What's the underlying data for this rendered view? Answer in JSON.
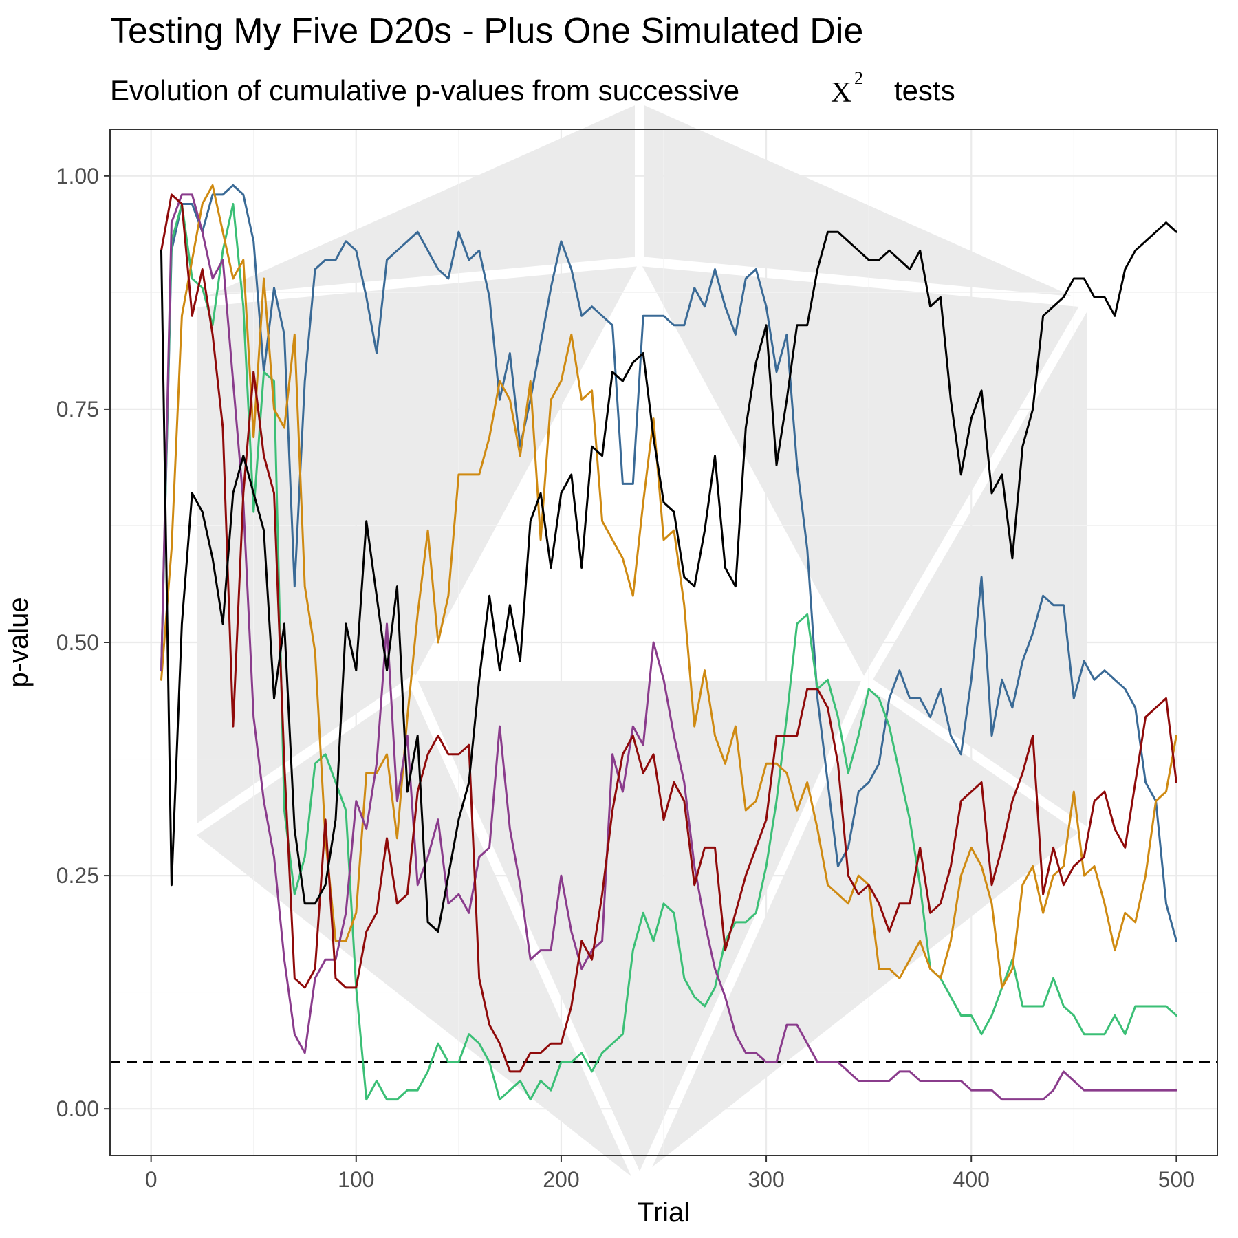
{
  "chart_data": {
    "type": "line",
    "title": "Testing My Five D20s - Plus One Simulated Die",
    "subtitle_before": "Evolution of cumulative p-values from successive",
    "subtitle_symbol": "X",
    "subtitle_superscript": "2",
    "subtitle_after": "tests",
    "xlabel": "Trial",
    "ylabel": "p-value",
    "xlim": [
      -20,
      520
    ],
    "ylim": [
      -0.05,
      1.05
    ],
    "x_ticks": [
      0,
      100,
      200,
      300,
      400,
      500
    ],
    "x_tick_labels": [
      "0",
      "100",
      "200",
      "300",
      "400",
      "500"
    ],
    "y_ticks": [
      0,
      0.25,
      0.5,
      0.75,
      1.0
    ],
    "y_tick_labels": [
      "0.00",
      "0.25",
      "0.50",
      "0.75",
      "1.00"
    ],
    "grid": true,
    "legend": "none",
    "reference_line": {
      "y": 0.05,
      "style": "dashed",
      "color": "#000000"
    },
    "x": [
      5,
      10,
      15,
      20,
      25,
      30,
      35,
      40,
      45,
      50,
      55,
      60,
      65,
      70,
      75,
      80,
      85,
      90,
      95,
      100,
      105,
      110,
      115,
      120,
      125,
      130,
      135,
      140,
      145,
      150,
      155,
      160,
      165,
      170,
      175,
      180,
      185,
      190,
      195,
      200,
      205,
      210,
      215,
      220,
      225,
      230,
      235,
      240,
      245,
      250,
      255,
      260,
      265,
      270,
      275,
      280,
      285,
      290,
      295,
      300,
      305,
      310,
      315,
      320,
      325,
      330,
      335,
      340,
      345,
      350,
      355,
      360,
      365,
      370,
      375,
      380,
      385,
      390,
      395,
      400,
      405,
      410,
      415,
      420,
      425,
      430,
      435,
      440,
      445,
      450,
      455,
      460,
      465,
      470,
      475,
      480,
      485,
      490,
      495,
      500
    ],
    "series": [
      {
        "color": "#3a6a96",
        "values": [
          0.47,
          0.92,
          0.97,
          0.97,
          0.94,
          0.98,
          0.98,
          0.99,
          0.98,
          0.93,
          0.79,
          0.88,
          0.83,
          0.56,
          0.78,
          0.9,
          0.91,
          0.91,
          0.93,
          0.92,
          0.87,
          0.81,
          0.91,
          0.92,
          0.93,
          0.94,
          0.92,
          0.9,
          0.89,
          0.94,
          0.91,
          0.92,
          0.87,
          0.76,
          0.81,
          0.71,
          0.76,
          0.82,
          0.88,
          0.93,
          0.9,
          0.85,
          0.86,
          0.85,
          0.84,
          0.67,
          0.67,
          0.85,
          0.85,
          0.85,
          0.84,
          0.84,
          0.88,
          0.86,
          0.9,
          0.86,
          0.83,
          0.89,
          0.9,
          0.86,
          0.79,
          0.83,
          0.69,
          0.6,
          0.44,
          0.35,
          0.26,
          0.28,
          0.34,
          0.35,
          0.37,
          0.44,
          0.47,
          0.44,
          0.44,
          0.42,
          0.45,
          0.4,
          0.38,
          0.46,
          0.57,
          0.4,
          0.46,
          0.43,
          0.48,
          0.51,
          0.55,
          0.54,
          0.54,
          0.44,
          0.48,
          0.46,
          0.47,
          0.46,
          0.45,
          0.43,
          0.35,
          0.33,
          0.22,
          0.18
        ]
      },
      {
        "color": "#3bbf76",
        "values": [
          0.47,
          0.93,
          0.97,
          0.89,
          0.88,
          0.84,
          0.92,
          0.97,
          0.86,
          0.64,
          0.79,
          0.78,
          0.32,
          0.23,
          0.27,
          0.37,
          0.38,
          0.35,
          0.32,
          0.13,
          0.01,
          0.03,
          0.01,
          0.01,
          0.02,
          0.02,
          0.04,
          0.07,
          0.05,
          0.05,
          0.08,
          0.07,
          0.05,
          0.01,
          0.02,
          0.03,
          0.01,
          0.03,
          0.02,
          0.05,
          0.05,
          0.06,
          0.04,
          0.06,
          0.07,
          0.08,
          0.17,
          0.21,
          0.18,
          0.22,
          0.21,
          0.14,
          0.12,
          0.11,
          0.13,
          0.18,
          0.2,
          0.2,
          0.21,
          0.26,
          0.33,
          0.42,
          0.52,
          0.53,
          0.45,
          0.46,
          0.42,
          0.36,
          0.4,
          0.45,
          0.44,
          0.41,
          0.36,
          0.31,
          0.24,
          0.15,
          0.14,
          0.12,
          0.1,
          0.1,
          0.08,
          0.1,
          0.13,
          0.16,
          0.11,
          0.11,
          0.11,
          0.14,
          0.11,
          0.1,
          0.08,
          0.08,
          0.08,
          0.1,
          0.08,
          0.11,
          0.11,
          0.11,
          0.11,
          0.1
        ]
      },
      {
        "color": "#cf8a12",
        "values": [
          0.46,
          0.6,
          0.85,
          0.91,
          0.97,
          0.99,
          0.94,
          0.89,
          0.91,
          0.72,
          0.89,
          0.75,
          0.73,
          0.83,
          0.56,
          0.49,
          0.29,
          0.18,
          0.18,
          0.21,
          0.36,
          0.36,
          0.38,
          0.29,
          0.42,
          0.53,
          0.62,
          0.5,
          0.55,
          0.68,
          0.68,
          0.68,
          0.72,
          0.78,
          0.76,
          0.7,
          0.78,
          0.61,
          0.76,
          0.78,
          0.83,
          0.76,
          0.77,
          0.63,
          0.61,
          0.59,
          0.55,
          0.65,
          0.74,
          0.61,
          0.62,
          0.54,
          0.41,
          0.47,
          0.4,
          0.37,
          0.41,
          0.32,
          0.33,
          0.37,
          0.37,
          0.36,
          0.32,
          0.35,
          0.3,
          0.24,
          0.23,
          0.22,
          0.25,
          0.24,
          0.15,
          0.15,
          0.14,
          0.16,
          0.18,
          0.15,
          0.14,
          0.18,
          0.25,
          0.28,
          0.26,
          0.22,
          0.13,
          0.15,
          0.24,
          0.26,
          0.21,
          0.25,
          0.26,
          0.34,
          0.25,
          0.26,
          0.22,
          0.17,
          0.21,
          0.2,
          0.25,
          0.33,
          0.34,
          0.4
        ]
      },
      {
        "color": "#8a3c8c",
        "values": [
          0.47,
          0.95,
          0.98,
          0.98,
          0.94,
          0.89,
          0.91,
          0.78,
          0.65,
          0.42,
          0.33,
          0.27,
          0.16,
          0.08,
          0.06,
          0.14,
          0.16,
          0.16,
          0.21,
          0.33,
          0.3,
          0.37,
          0.52,
          0.33,
          0.4,
          0.24,
          0.27,
          0.31,
          0.22,
          0.23,
          0.21,
          0.27,
          0.28,
          0.41,
          0.3,
          0.24,
          0.16,
          0.17,
          0.17,
          0.25,
          0.19,
          0.15,
          0.17,
          0.18,
          0.38,
          0.34,
          0.41,
          0.39,
          0.5,
          0.46,
          0.4,
          0.35,
          0.26,
          0.2,
          0.15,
          0.12,
          0.08,
          0.06,
          0.06,
          0.05,
          0.05,
          0.09,
          0.09,
          0.07,
          0.05,
          0.05,
          0.05,
          0.04,
          0.03,
          0.03,
          0.03,
          0.03,
          0.04,
          0.04,
          0.03,
          0.03,
          0.03,
          0.03,
          0.03,
          0.02,
          0.02,
          0.02,
          0.01,
          0.01,
          0.01,
          0.01,
          0.01,
          0.02,
          0.04,
          0.03,
          0.02,
          0.02,
          0.02,
          0.02,
          0.02,
          0.02,
          0.02,
          0.02,
          0.02,
          0.02
        ]
      },
      {
        "color": "#8f0a0a",
        "values": [
          0.92,
          0.98,
          0.97,
          0.85,
          0.9,
          0.83,
          0.73,
          0.41,
          0.66,
          0.79,
          0.7,
          0.66,
          0.37,
          0.14,
          0.13,
          0.15,
          0.31,
          0.14,
          0.13,
          0.13,
          0.19,
          0.21,
          0.29,
          0.22,
          0.23,
          0.34,
          0.38,
          0.4,
          0.38,
          0.38,
          0.39,
          0.14,
          0.09,
          0.07,
          0.04,
          0.04,
          0.06,
          0.06,
          0.07,
          0.07,
          0.11,
          0.18,
          0.16,
          0.23,
          0.32,
          0.38,
          0.4,
          0.36,
          0.38,
          0.31,
          0.35,
          0.33,
          0.24,
          0.28,
          0.28,
          0.17,
          0.21,
          0.25,
          0.28,
          0.31,
          0.4,
          0.4,
          0.4,
          0.45,
          0.45,
          0.43,
          0.37,
          0.25,
          0.23,
          0.24,
          0.22,
          0.19,
          0.22,
          0.22,
          0.28,
          0.21,
          0.22,
          0.26,
          0.33,
          0.34,
          0.35,
          0.24,
          0.28,
          0.33,
          0.36,
          0.4,
          0.23,
          0.28,
          0.24,
          0.26,
          0.27,
          0.33,
          0.34,
          0.3,
          0.28,
          0.35,
          0.42,
          0.43,
          0.44,
          0.35
        ]
      },
      {
        "color": "#000000",
        "values": [
          0.92,
          0.24,
          0.52,
          0.66,
          0.64,
          0.59,
          0.52,
          0.66,
          0.7,
          0.66,
          0.62,
          0.44,
          0.52,
          0.3,
          0.22,
          0.22,
          0.24,
          0.31,
          0.52,
          0.47,
          0.63,
          0.55,
          0.47,
          0.56,
          0.34,
          0.4,
          0.2,
          0.19,
          0.25,
          0.31,
          0.35,
          0.46,
          0.55,
          0.47,
          0.54,
          0.48,
          0.63,
          0.66,
          0.58,
          0.66,
          0.68,
          0.58,
          0.71,
          0.7,
          0.79,
          0.78,
          0.8,
          0.81,
          0.72,
          0.65,
          0.64,
          0.57,
          0.56,
          0.62,
          0.7,
          0.58,
          0.56,
          0.73,
          0.8,
          0.84,
          0.69,
          0.76,
          0.84,
          0.84,
          0.9,
          0.94,
          0.94,
          0.93,
          0.92,
          0.91,
          0.91,
          0.92,
          0.91,
          0.9,
          0.92,
          0.86,
          0.87,
          0.76,
          0.68,
          0.74,
          0.77,
          0.66,
          0.68,
          0.59,
          0.71,
          0.75,
          0.85,
          0.86,
          0.87,
          0.89,
          0.89,
          0.87,
          0.87,
          0.85,
          0.9,
          0.92,
          0.93,
          0.94,
          0.95,
          0.94
        ]
      }
    ]
  }
}
